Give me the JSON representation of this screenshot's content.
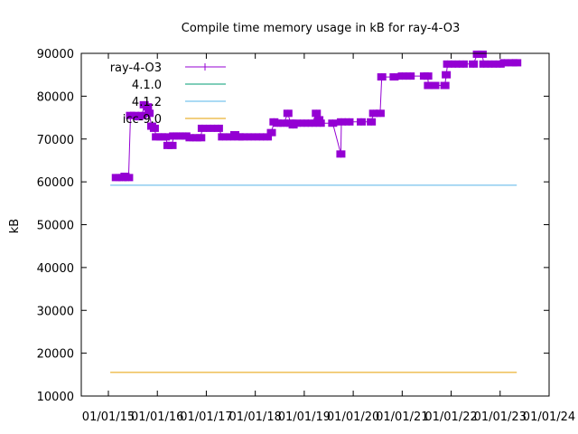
{
  "chart_data": {
    "type": "line",
    "title": "Compile time memory usage in kB for ray-4-O3",
    "xlabel": "",
    "ylabel": "kB",
    "ylim": [
      10000,
      90000
    ],
    "xlim": [
      "2015-01-01",
      "2024-01-01"
    ],
    "y_ticks": [
      "10000",
      "20000",
      "30000",
      "40000",
      "50000",
      "60000",
      "70000",
      "80000",
      "90000"
    ],
    "x_ticks": [
      "01/01/15",
      "01/01/16",
      "01/01/17",
      "01/01/18",
      "01/01/19",
      "01/01/20",
      "01/01/21",
      "01/01/22",
      "01/01/23",
      "01/01/24"
    ],
    "grid": false,
    "legend_position": "top-left",
    "series": [
      {
        "name": "ray-4-O3",
        "color": "#9400d3",
        "style": "line-points",
        "points": [
          [
            "2015-03-01",
            61000
          ],
          [
            "2015-04-15",
            61000
          ],
          [
            "2015-05-05",
            61300
          ],
          [
            "2015-06-01",
            61000
          ],
          [
            "2015-06-15",
            75500
          ],
          [
            "2015-07-15",
            75500
          ],
          [
            "2015-08-15",
            75200
          ],
          [
            "2015-09-10",
            75500
          ],
          [
            "2015-09-25",
            78000
          ],
          [
            "2015-10-20",
            77500
          ],
          [
            "2015-11-01",
            76000
          ],
          [
            "2015-11-20",
            73000
          ],
          [
            "2015-12-10",
            72500
          ],
          [
            "2015-12-25",
            70500
          ],
          [
            "2016-02-01",
            70500
          ],
          [
            "2016-03-01",
            70500
          ],
          [
            "2016-03-20",
            68500
          ],
          [
            "2016-04-20",
            68500
          ],
          [
            "2016-05-01",
            70700
          ],
          [
            "2016-06-15",
            70700
          ],
          [
            "2016-08-01",
            70700
          ],
          [
            "2016-09-01",
            70300
          ],
          [
            "2016-10-15",
            70300
          ],
          [
            "2016-11-20",
            70300
          ],
          [
            "2016-12-01",
            72500
          ],
          [
            "2017-02-01",
            72500
          ],
          [
            "2017-04-01",
            72500
          ],
          [
            "2017-05-01",
            70500
          ],
          [
            "2017-07-01",
            70500
          ],
          [
            "2017-08-01",
            71000
          ],
          [
            "2017-09-01",
            70500
          ],
          [
            "2017-10-01",
            70500
          ],
          [
            "2017-12-01",
            70500
          ],
          [
            "2018-02-01",
            70500
          ],
          [
            "2018-04-01",
            70500
          ],
          [
            "2018-05-01",
            71500
          ],
          [
            "2018-05-20",
            74000
          ],
          [
            "2018-06-15",
            73700
          ],
          [
            "2018-08-01",
            73700
          ],
          [
            "2018-09-01",
            76000
          ],
          [
            "2018-09-20",
            73700
          ],
          [
            "2018-10-10",
            73300
          ],
          [
            "2018-11-01",
            73700
          ],
          [
            "2019-01-01",
            73700
          ],
          [
            "2019-03-01",
            73700
          ],
          [
            "2019-04-01",
            76000
          ],
          [
            "2019-04-20",
            74500
          ],
          [
            "2019-05-01",
            73700
          ],
          [
            "2019-08-01",
            73700
          ],
          [
            "2019-10-01",
            66500
          ],
          [
            "2019-10-05",
            74000
          ],
          [
            "2019-12-01",
            74000
          ],
          [
            "2020-03-01",
            74000
          ],
          [
            "2020-05-15",
            74000
          ],
          [
            "2020-06-01",
            76000
          ],
          [
            "2020-07-20",
            76000
          ],
          [
            "2020-08-01",
            84500
          ],
          [
            "2020-11-01",
            84500
          ],
          [
            "2021-01-01",
            84700
          ],
          [
            "2021-03-01",
            84700
          ],
          [
            "2021-06-15",
            84700
          ],
          [
            "2021-07-10",
            84700
          ],
          [
            "2021-07-15",
            82500
          ],
          [
            "2021-09-01",
            82500
          ],
          [
            "2021-11-15",
            82500
          ],
          [
            "2021-11-25",
            85000
          ],
          [
            "2021-12-05",
            87500
          ],
          [
            "2022-02-01",
            87500
          ],
          [
            "2022-04-01",
            87500
          ],
          [
            "2022-06-15",
            87500
          ],
          [
            "2022-07-15",
            89800
          ],
          [
            "2022-08-20",
            89800
          ],
          [
            "2022-09-01",
            87500
          ],
          [
            "2022-11-01",
            87500
          ],
          [
            "2023-01-01",
            87500
          ],
          [
            "2023-02-01",
            87800
          ],
          [
            "2023-04-01",
            87800
          ],
          [
            "2023-05-05",
            87800
          ]
        ]
      },
      {
        "name": "4.1.0",
        "color": "#009e73",
        "style": "line",
        "points": []
      },
      {
        "name": "4.1.2",
        "color": "#56b4e9",
        "style": "line",
        "points": [
          [
            "2015-01-15",
            59200
          ],
          [
            "2023-05-05",
            59200
          ]
        ]
      },
      {
        "name": "icc-9.0",
        "color": "#e69f00",
        "style": "line",
        "points": [
          [
            "2015-01-15",
            15500
          ],
          [
            "2023-05-05",
            15500
          ]
        ]
      }
    ]
  }
}
